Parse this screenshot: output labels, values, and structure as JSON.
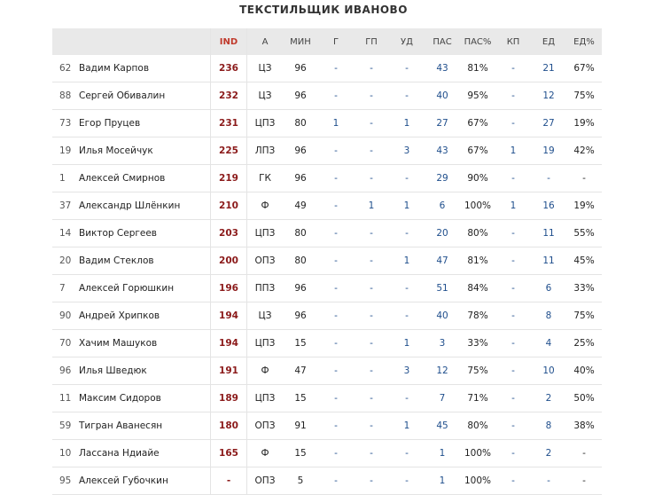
{
  "team_title": "ТЕКСТИЛЬЩИК ИВАНОВО",
  "columns": [
    "IND",
    "А",
    "МИН",
    "Г",
    "ГП",
    "УД",
    "ПАС",
    "ПАС%",
    "КП",
    "ЕД",
    "ЕД%"
  ],
  "rows": [
    {
      "num": "62",
      "name": "Вадим Карпов",
      "ind": "236",
      "pos": "ЦЗ",
      "min": "96",
      "g": "-",
      "gp": "-",
      "ud": "-",
      "pas": "43",
      "pasp": "81%",
      "kp": "-",
      "ed": "21",
      "edp": "67%"
    },
    {
      "num": "88",
      "name": "Сергей Обивалин",
      "ind": "232",
      "pos": "ЦЗ",
      "min": "96",
      "g": "-",
      "gp": "-",
      "ud": "-",
      "pas": "40",
      "pasp": "95%",
      "kp": "-",
      "ed": "12",
      "edp": "75%"
    },
    {
      "num": "73",
      "name": "Егор Пруцев",
      "ind": "231",
      "pos": "ЦПЗ",
      "min": "80",
      "g": "1",
      "gp": "-",
      "ud": "1",
      "pas": "27",
      "pasp": "67%",
      "kp": "-",
      "ed": "27",
      "edp": "19%"
    },
    {
      "num": "19",
      "name": "Илья Мосейчук",
      "ind": "225",
      "pos": "ЛПЗ",
      "min": "96",
      "g": "-",
      "gp": "-",
      "ud": "3",
      "pas": "43",
      "pasp": "67%",
      "kp": "1",
      "ed": "19",
      "edp": "42%"
    },
    {
      "num": "1",
      "name": "Алексей Смирнов",
      "ind": "219",
      "pos": "ГК",
      "min": "96",
      "g": "-",
      "gp": "-",
      "ud": "-",
      "pas": "29",
      "pasp": "90%",
      "kp": "-",
      "ed": "-",
      "edp": "-"
    },
    {
      "num": "37",
      "name": "Александр Шлёнкин",
      "ind": "210",
      "pos": "Ф",
      "min": "49",
      "g": "-",
      "gp": "1",
      "ud": "1",
      "pas": "6",
      "pasp": "100%",
      "kp": "1",
      "ed": "16",
      "edp": "19%"
    },
    {
      "num": "14",
      "name": "Виктор Сергеев",
      "ind": "203",
      "pos": "ЦПЗ",
      "min": "80",
      "g": "-",
      "gp": "-",
      "ud": "-",
      "pas": "20",
      "pasp": "80%",
      "kp": "-",
      "ed": "11",
      "edp": "55%"
    },
    {
      "num": "20",
      "name": "Вадим Стеклов",
      "ind": "200",
      "pos": "ОПЗ",
      "min": "80",
      "g": "-",
      "gp": "-",
      "ud": "1",
      "pas": "47",
      "pasp": "81%",
      "kp": "-",
      "ed": "11",
      "edp": "45%"
    },
    {
      "num": "7",
      "name": "Алексей Горюшкин",
      "ind": "196",
      "pos": "ППЗ",
      "min": "96",
      "g": "-",
      "gp": "-",
      "ud": "-",
      "pas": "51",
      "pasp": "84%",
      "kp": "-",
      "ed": "6",
      "edp": "33%"
    },
    {
      "num": "90",
      "name": "Андрей Хрипков",
      "ind": "194",
      "pos": "ЦЗ",
      "min": "96",
      "g": "-",
      "gp": "-",
      "ud": "-",
      "pas": "40",
      "pasp": "78%",
      "kp": "-",
      "ed": "8",
      "edp": "75%"
    },
    {
      "num": "70",
      "name": "Хачим Машуков",
      "ind": "194",
      "pos": "ЦПЗ",
      "min": "15",
      "g": "-",
      "gp": "-",
      "ud": "1",
      "pas": "3",
      "pasp": "33%",
      "kp": "-",
      "ed": "4",
      "edp": "25%"
    },
    {
      "num": "96",
      "name": "Илья Шведюк",
      "ind": "191",
      "pos": "Ф",
      "min": "47",
      "g": "-",
      "gp": "-",
      "ud": "3",
      "pas": "12",
      "pasp": "75%",
      "kp": "-",
      "ed": "10",
      "edp": "40%"
    },
    {
      "num": "11",
      "name": "Максим Сидоров",
      "ind": "189",
      "pos": "ЦПЗ",
      "min": "15",
      "g": "-",
      "gp": "-",
      "ud": "-",
      "pas": "7",
      "pasp": "71%",
      "kp": "-",
      "ed": "2",
      "edp": "50%"
    },
    {
      "num": "59",
      "name": "Тигран Аванесян",
      "ind": "180",
      "pos": "ОПЗ",
      "min": "91",
      "g": "-",
      "gp": "-",
      "ud": "1",
      "pas": "45",
      "pasp": "80%",
      "kp": "-",
      "ed": "8",
      "edp": "38%"
    },
    {
      "num": "10",
      "name": "Лассана Ндиайе",
      "ind": "165",
      "pos": "Ф",
      "min": "15",
      "g": "-",
      "gp": "-",
      "ud": "-",
      "pas": "1",
      "pasp": "100%",
      "kp": "-",
      "ed": "2",
      "edp": "-"
    },
    {
      "num": "95",
      "name": "Алексей Губочкин",
      "ind": "-",
      "pos": "ОПЗ",
      "min": "5",
      "g": "-",
      "gp": "-",
      "ud": "-",
      "pas": "1",
      "pasp": "100%",
      "kp": "-",
      "ed": "-",
      "edp": "-"
    }
  ]
}
